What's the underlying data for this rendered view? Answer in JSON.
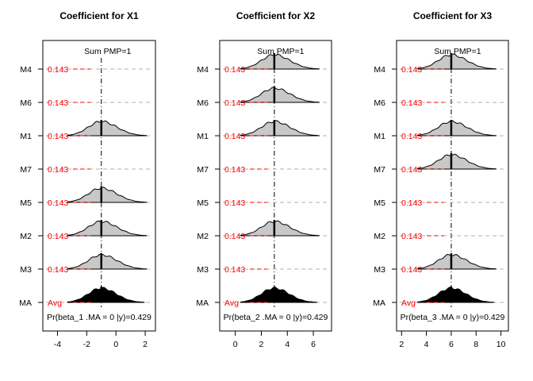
{
  "chart_data": [
    {
      "type": "ridgeline",
      "title": "Coefficient for X1",
      "rows": [
        "M4",
        "M6",
        "M1",
        "M7",
        "M5",
        "M2",
        "M3",
        "MA"
      ],
      "pmp_label": "Sum PMP=1",
      "prob_label": "Pr(beta_1 .MA = 0 |y)=0.429",
      "xlim": [
        -5,
        2.7
      ],
      "xticks": [
        -4,
        -2,
        0,
        2
      ],
      "center": -1,
      "row_label": "0.143",
      "avg_label": "Avg",
      "rows_data": [
        {
          "model": "M4",
          "pmp": "0.143",
          "has_density": false
        },
        {
          "model": "M6",
          "pmp": "0.143",
          "has_density": false
        },
        {
          "model": "M1",
          "pmp": "0.143",
          "has_density": true,
          "mode": -1.0
        },
        {
          "model": "M7",
          "pmp": "0.143",
          "has_density": false
        },
        {
          "model": "M5",
          "pmp": "0.143",
          "has_density": true,
          "mode": -1.0
        },
        {
          "model": "M2",
          "pmp": "0.143",
          "has_density": true,
          "mode": -1.0
        },
        {
          "model": "M3",
          "pmp": "0.143",
          "has_density": true,
          "mode": -1.0
        },
        {
          "model": "MA",
          "pmp": "Avg",
          "has_density": true,
          "mode": -1.0
        }
      ]
    },
    {
      "type": "ridgeline",
      "title": "Coefficient for X2",
      "rows": [
        "M4",
        "M6",
        "M1",
        "M7",
        "M5",
        "M2",
        "M3",
        "MA"
      ],
      "pmp_label": "Sum PMP=1",
      "prob_label": "Pr(beta_2 .MA = 0 |y)=0.429",
      "xlim": [
        -1.2,
        7.4
      ],
      "xticks": [
        0,
        2,
        4,
        6
      ],
      "center": 3,
      "row_label": "0.143",
      "avg_label": "Avg",
      "rows_data": [
        {
          "model": "M4",
          "pmp": "0.143",
          "has_density": true,
          "mode": 3.0
        },
        {
          "model": "M6",
          "pmp": "0.143",
          "has_density": true,
          "mode": 3.0
        },
        {
          "model": "M1",
          "pmp": "0.143",
          "has_density": true,
          "mode": 3.0
        },
        {
          "model": "M7",
          "pmp": "0.143",
          "has_density": false
        },
        {
          "model": "M5",
          "pmp": "0.143",
          "has_density": false
        },
        {
          "model": "M2",
          "pmp": "0.143",
          "has_density": true,
          "mode": 3.0
        },
        {
          "model": "M3",
          "pmp": "0.143",
          "has_density": false
        },
        {
          "model": "MA",
          "pmp": "Avg",
          "has_density": true,
          "mode": 3.0
        }
      ]
    },
    {
      "type": "ridgeline",
      "title": "Coefficient for X3",
      "rows": [
        "M4",
        "M6",
        "M1",
        "M7",
        "M5",
        "M2",
        "M3",
        "MA"
      ],
      "pmp_label": "Sum PMP=1",
      "prob_label": "Pr(beta_3 .MA = 0 |y)=0.429",
      "xlim": [
        1.6,
        10.6
      ],
      "xticks": [
        2,
        4,
        6,
        8,
        10
      ],
      "center": 6,
      "row_label": "0.143",
      "avg_label": "Avg",
      "rows_data": [
        {
          "model": "M4",
          "pmp": "0.143",
          "has_density": true,
          "mode": 6.0
        },
        {
          "model": "M6",
          "pmp": "0.143",
          "has_density": false
        },
        {
          "model": "M1",
          "pmp": "0.143",
          "has_density": true,
          "mode": 6.0
        },
        {
          "model": "M7",
          "pmp": "0.143",
          "has_density": true,
          "mode": 6.0
        },
        {
          "model": "M5",
          "pmp": "0.143",
          "has_density": false
        },
        {
          "model": "M2",
          "pmp": "0.143",
          "has_density": false
        },
        {
          "model": "M3",
          "pmp": "0.143",
          "has_density": true,
          "mode": 6.0
        },
        {
          "model": "MA",
          "pmp": "Avg",
          "has_density": true,
          "mode": 6.0
        }
      ]
    }
  ]
}
